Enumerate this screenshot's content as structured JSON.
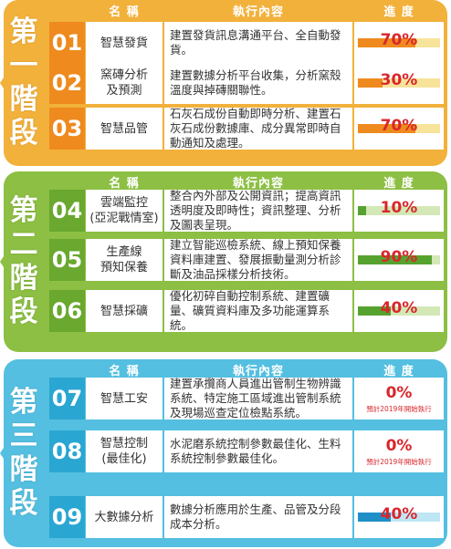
{
  "headers": {
    "name": "名 稱",
    "content": "執行內容",
    "progress": "進 度"
  },
  "stages": [
    {
      "label": [
        "第",
        "一",
        "階",
        "段"
      ],
      "color": "#f2b13b",
      "items": [
        {
          "num": "01",
          "name": "智慧發貨",
          "content": "建置發貨訊息溝通平台、全自動發貨。",
          "progress": "70%",
          "value": 0.7
        },
        {
          "num": "02",
          "name": "窯磚分析\n及預測",
          "content": "建置數據分析平台收集，分析窯殼溫度與掉磚關聯性。",
          "progress": "30%",
          "value": 0.3
        },
        {
          "num": "03",
          "name": "智慧品管",
          "content": "石灰石成份自動即時分析、建置石灰石成份數據庫、成分異常即時自動通知及處理。",
          "progress": "70%",
          "value": 0.7
        }
      ]
    },
    {
      "label": [
        "第",
        "二",
        "階",
        "段"
      ],
      "color": "#8cbf43",
      "items": [
        {
          "num": "04",
          "name": "雲端監控\n(亞泥戰情室)",
          "content": "整合內外部及公開資訊；提高資訊透明度及即時性；資訊整理、分析及圖表呈現。",
          "progress": "10%",
          "value": 0.1
        },
        {
          "num": "05",
          "name": "生產線\n預知保養",
          "content": "建立智能巡檢系統、線上預知保養資料庫建置、發展振動量測分析診斷及油品採樣分析技術。",
          "progress": "90%",
          "value": 0.9
        },
        {
          "num": "06",
          "name": "智慧採礦",
          "content": "優化初碎自動控制系統、建置礦量、礦質資料庫及多功能運算系統。",
          "progress": "40%",
          "value": 0.4
        }
      ]
    },
    {
      "label": [
        "第",
        "三",
        "階",
        "段"
      ],
      "color": "#54bfe0",
      "items": [
        {
          "num": "07",
          "name": "智慧工安",
          "content": "建置承攬商人員進出管制生物辨識系統、特定施工區域進出管制系統及現場巡查定位檢點系統。",
          "progress": "0%",
          "value": 0,
          "note": "預計2019年開始執行"
        },
        {
          "num": "08",
          "name": "智慧控制\n(最佳化)",
          "content": "水泥磨系統控制參數最佳化、生料系統控制參數最佳化。",
          "progress": "0%",
          "value": 0,
          "note": "預計2019年開始執行"
        },
        {
          "num": "09",
          "name": "大數據分析",
          "content": "數據分析應用於生產、品管及分段成本分析。",
          "progress": "40%",
          "value": 0.4
        }
      ]
    }
  ],
  "colors": {
    "stage1_dark": "#f2b13b",
    "stage1_num": "#ee8a1e",
    "stage1_fill": "#ef8a1e",
    "stage1_bar_bg": "#f7e39a",
    "stage2_dark": "#8cbf43",
    "stage2_num": "#6aa82f",
    "stage2_fill": "#56a22f",
    "stage2_bar_bg": "#d3e8b6",
    "stage3_dark": "#54bfe0",
    "stage3_num": "#2aa6d2",
    "stage3_fill": "#1f8fc8",
    "stage3_bar_bg": "#bfe6f4"
  }
}
